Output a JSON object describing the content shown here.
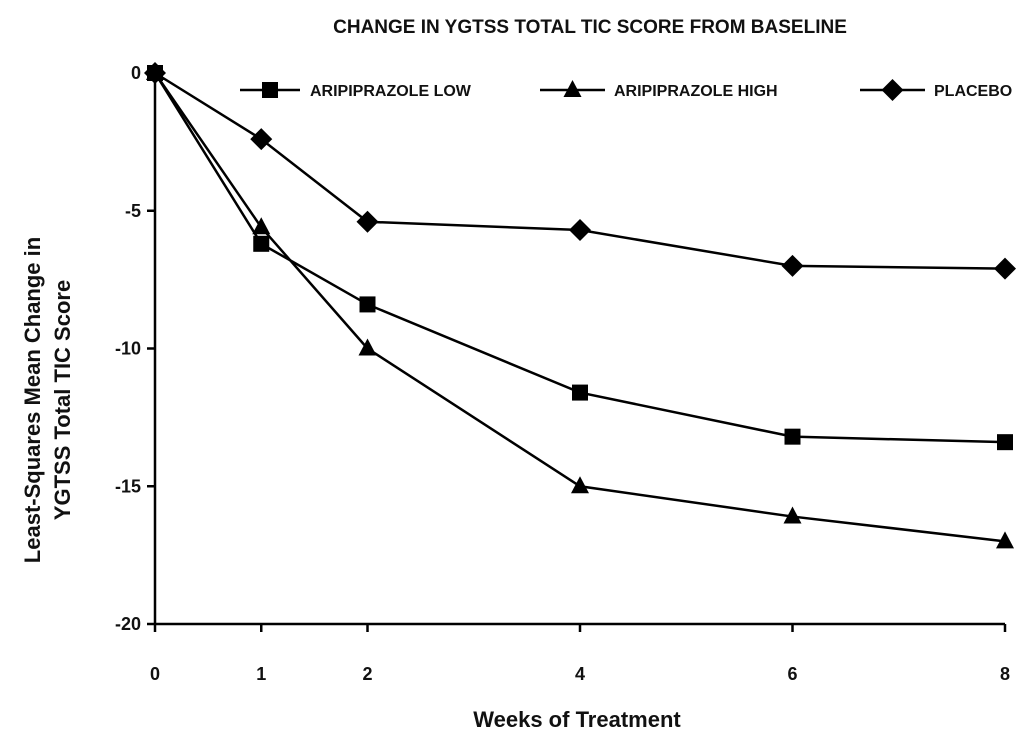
{
  "chart_data": {
    "type": "line",
    "title": "CHANGE IN YGTSS TOTAL TIC SCORE FROM BASELINE",
    "xlabel": "Weeks of Treatment",
    "ylabel": [
      "Least-Squares Mean Change in",
      "YGTSS Total TIC Score"
    ],
    "x": [
      0,
      1,
      2,
      4,
      6,
      8
    ],
    "xlim": [
      0,
      8
    ],
    "ylim": [
      -20,
      0
    ],
    "xticks": [
      "0",
      "1",
      "2",
      "4",
      "6",
      "8"
    ],
    "yticks": [
      "0",
      "-5",
      "-10",
      "-15",
      "-20"
    ],
    "ytick_values": [
      0,
      -5,
      -10,
      -15,
      -20
    ],
    "grid": false,
    "legend_position": "top",
    "series": [
      {
        "name": "ARIPIPRAZOLE LOW",
        "marker": "square",
        "color": "#000000",
        "values": [
          0,
          -6.2,
          -8.4,
          -11.6,
          -13.2,
          -13.4
        ]
      },
      {
        "name": "ARIPIPRAZOLE HIGH",
        "marker": "triangle",
        "color": "#000000",
        "values": [
          0,
          -5.6,
          -10.0,
          -15.0,
          -16.1,
          -17.0
        ]
      },
      {
        "name": "PLACEBO",
        "marker": "diamond",
        "color": "#000000",
        "values": [
          0,
          -2.4,
          -5.4,
          -5.7,
          -7.0,
          -7.1
        ]
      }
    ]
  }
}
